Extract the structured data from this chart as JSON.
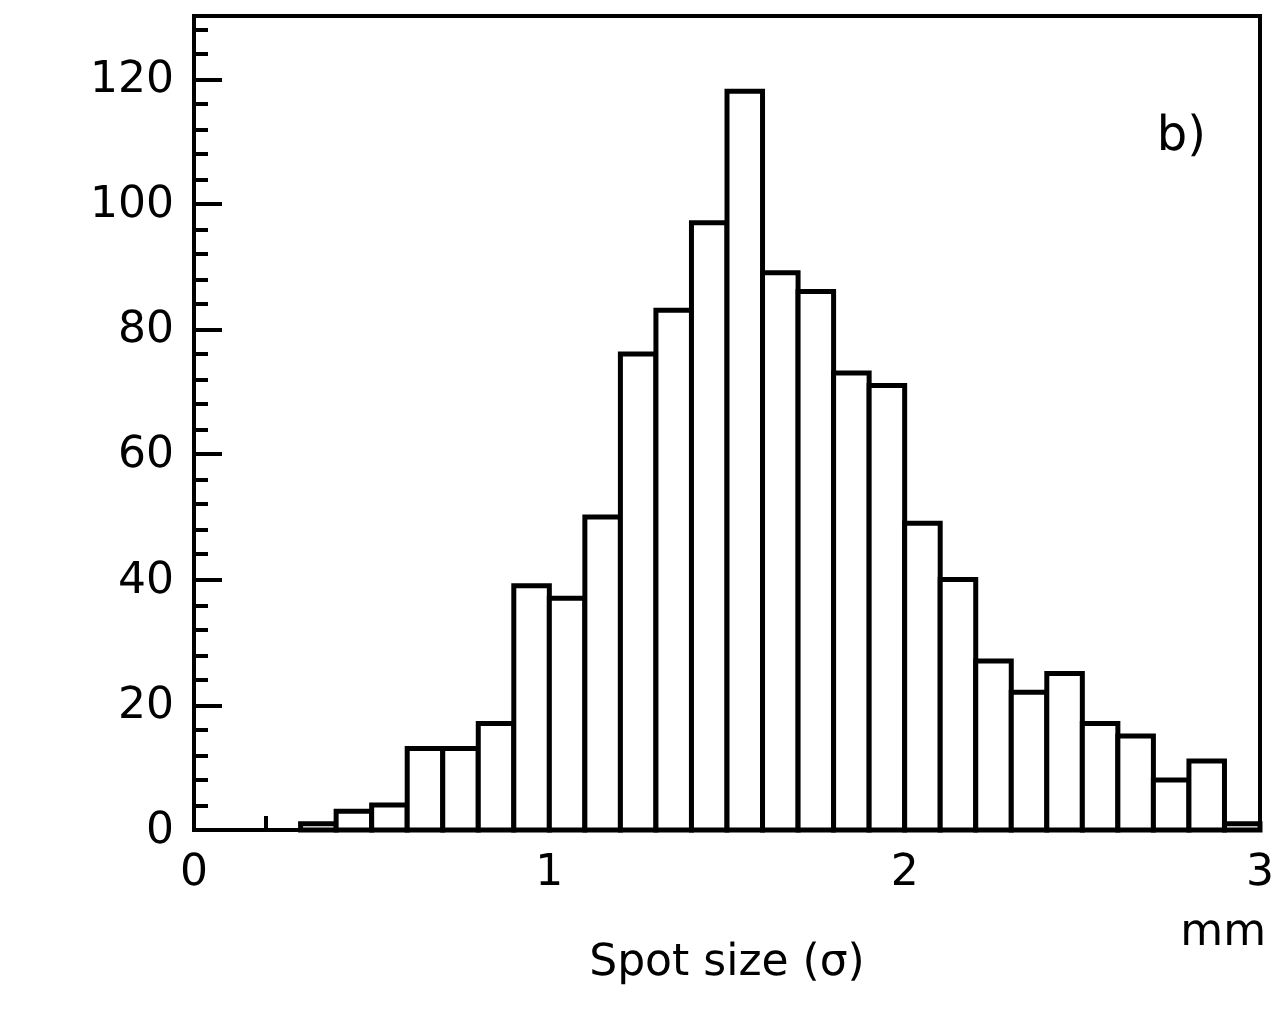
{
  "chart_data": {
    "type": "histogram",
    "xlabel": "Spot size (σ)",
    "annotations": [
      "b)",
      "mm"
    ],
    "bins": [
      0.3,
      0.4,
      0.5,
      0.6,
      0.7,
      0.8,
      0.9,
      1.0,
      1.1,
      1.2,
      1.3,
      1.4,
      1.5,
      1.6,
      1.7,
      1.8,
      1.9,
      2.0,
      2.1,
      2.2,
      2.3,
      2.4,
      2.5,
      2.6,
      2.7,
      2.8,
      2.9,
      3.0
    ],
    "values": [
      1,
      3,
      4,
      13,
      13,
      17,
      39,
      37,
      50,
      76,
      83,
      97,
      118,
      89,
      86,
      73,
      71,
      49,
      40,
      27,
      22,
      25,
      17,
      15,
      8,
      11,
      1
    ],
    "color": "#000000",
    "xlim": [
      0,
      3
    ],
    "xticks": [
      0,
      1,
      2,
      3
    ],
    "ylim": [
      0,
      130
    ],
    "yticks": [
      0,
      20,
      40,
      60,
      80,
      100,
      120
    ],
    "grid": false
  }
}
